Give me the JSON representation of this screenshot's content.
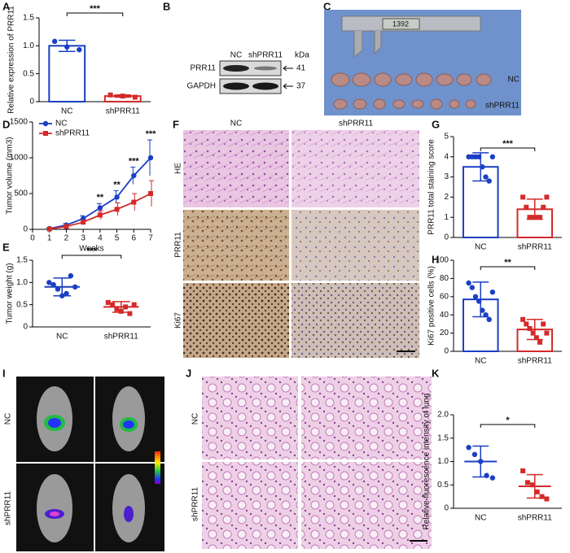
{
  "figure": {
    "panel_labels": [
      "A",
      "B",
      "C",
      "D",
      "E",
      "F",
      "G",
      "H",
      "I",
      "J",
      "K"
    ],
    "B": {
      "lanes": [
        "NC",
        "shPRR11"
      ],
      "unit": "kDa",
      "rows": [
        "PRR11",
        "GAPDH"
      ],
      "sizes": [
        41,
        37
      ]
    },
    "C": {
      "caliper": "1392",
      "rows": [
        "NC",
        "shPRR11"
      ]
    },
    "F": {
      "columns": [
        "NC",
        "shPRR11"
      ],
      "rows": [
        "HE",
        "PRR11",
        "Ki67"
      ]
    },
    "I": {
      "rows": [
        "NC",
        "shPRR11"
      ]
    },
    "J": {
      "rows": [
        "NC",
        "shPRR11"
      ]
    }
  },
  "chart_data": [
    {
      "type": "bar",
      "ylabel": "Relative expression of PRR11",
      "categories": [
        "NC",
        "shPRR11"
      ],
      "values": [
        1.0,
        0.1
      ],
      "errors": [
        0.1,
        0.02
      ],
      "points": [
        [
          1.08,
          0.98,
          0.93
        ],
        [
          0.12,
          0.1,
          0.08
        ]
      ],
      "colors": [
        "#1a3fc4",
        "#d42a2a"
      ],
      "markers": [
        "circle",
        "square"
      ],
      "significance": "***",
      "ylim": [
        0,
        1.5
      ],
      "yticks": [
        0,
        0.5,
        {
          "value": 1,
          "label": "1.0"
        },
        1.5
      ],
      "grid": false
    },
    {
      "type": "line",
      "ylabel": "Tumor volume (mm3)",
      "xlabel": "Weeks",
      "x": [
        1,
        2,
        3,
        4,
        5,
        6,
        7
      ],
      "series": [
        {
          "name": "NC",
          "color": "#1a3fc4",
          "marker": "circle",
          "values": [
            10,
            60,
            150,
            300,
            450,
            750,
            1000
          ],
          "errors": [
            5,
            20,
            40,
            60,
            90,
            120,
            250
          ]
        },
        {
          "name": "shPRR11",
          "color": "#d42a2a",
          "marker": "square",
          "values": [
            5,
            40,
            100,
            200,
            280,
            380,
            500
          ],
          "errors": [
            5,
            15,
            30,
            60,
            90,
            120,
            180
          ]
        }
      ],
      "annotations": [
        {
          "x": 4,
          "label": "**"
        },
        {
          "x": 5,
          "label": "**"
        },
        {
          "x": 6,
          "label": "***"
        },
        {
          "x": 7,
          "label": "***"
        }
      ],
      "xlim": [
        0,
        7
      ],
      "xticks": [
        0,
        1,
        2,
        3,
        4,
        5,
        6,
        7
      ],
      "ylim": [
        0,
        1500
      ],
      "yticks": [
        0,
        500,
        1000,
        1500
      ],
      "legend": "upper left",
      "grid": false
    },
    {
      "type": "dotplot",
      "ylabel": "Tumor weight (g)",
      "categories": [
        "NC",
        "shPRR11"
      ],
      "values": [
        0.9,
        0.45
      ],
      "errors": [
        0.2,
        0.12
      ],
      "points": [
        [
          1.0,
          0.95,
          0.85,
          0.7,
          0.75,
          1.15,
          0.9
        ],
        [
          0.55,
          0.5,
          0.4,
          0.35,
          0.45,
          0.3,
          0.5
        ]
      ],
      "colors": [
        "#1a3fc4",
        "#d42a2a"
      ],
      "markers": [
        "circle",
        "square"
      ],
      "significance": "***",
      "ylim": [
        0,
        1.5
      ],
      "yticks": [
        0,
        0.5,
        {
          "value": 1,
          "label": "1.0"
        },
        1.5
      ],
      "grid": false
    },
    {
      "type": "bar",
      "ylabel": "PRR11 total staining score",
      "categories": [
        "NC",
        "shPRR11"
      ],
      "values": [
        3.5,
        1.4
      ],
      "errors": [
        0.7,
        0.5
      ],
      "points": [
        [
          4,
          4,
          4,
          4,
          3.5,
          3,
          2.8,
          4
        ],
        [
          2,
          1.5,
          1,
          1,
          1,
          1,
          1.5,
          2
        ]
      ],
      "colors": [
        "#1a3fc4",
        "#d42a2a"
      ],
      "markers": [
        "circle",
        "square"
      ],
      "significance": "***",
      "ylim": [
        0,
        5
      ],
      "yticks": [
        0,
        1,
        2,
        3,
        4,
        5
      ],
      "grid": false
    },
    {
      "type": "bar",
      "ylabel": "Ki67 positive cells (%)",
      "categories": [
        "NC",
        "shPRR11"
      ],
      "values": [
        57,
        24
      ],
      "errors": [
        19,
        11
      ],
      "points": [
        [
          75,
          70,
          60,
          55,
          45,
          40,
          35,
          65
        ],
        [
          35,
          30,
          25,
          20,
          15,
          10,
          30,
          20
        ]
      ],
      "colors": [
        "#1a3fc4",
        "#d42a2a"
      ],
      "markers": [
        "circle",
        "square"
      ],
      "significance": "**",
      "ylim": [
        0,
        100
      ],
      "yticks": [
        0,
        20,
        40,
        60,
        80,
        100
      ],
      "grid": false
    },
    {
      "type": "dotplot",
      "ylabel": "Relative fluorescence intensity of lung",
      "categories": [
        "NC",
        "shPRR11"
      ],
      "values": [
        1.0,
        0.47
      ],
      "errors": [
        0.33,
        0.25
      ],
      "points": [
        [
          1.3,
          1.15,
          1.0,
          0.7,
          0.65
        ],
        [
          0.8,
          0.55,
          0.5,
          0.35,
          0.25,
          0.2
        ]
      ],
      "colors": [
        "#1a3fc4",
        "#d42a2a"
      ],
      "markers": [
        "circle",
        "square"
      ],
      "significance": "*",
      "ylim": [
        0,
        2
      ],
      "yticks": [
        0,
        0.5,
        {
          "value": 1,
          "label": "1.0"
        },
        1.5,
        {
          "value": 2,
          "label": "2.0"
        }
      ],
      "grid": false
    }
  ]
}
